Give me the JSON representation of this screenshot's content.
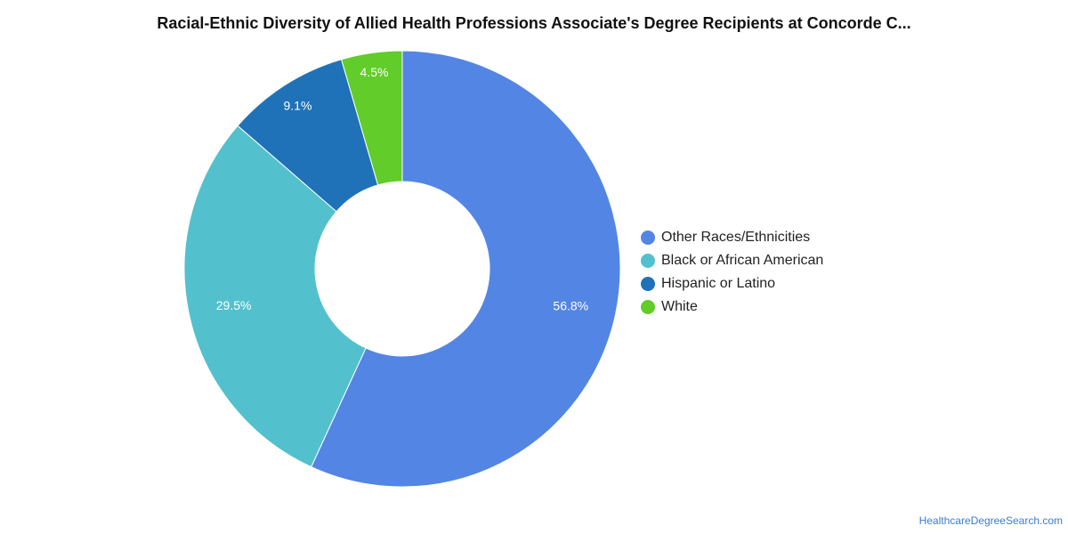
{
  "chart_data": {
    "type": "pie",
    "title": "Racial-Ethnic Diversity of Allied Health Professions Associate's Degree Recipients at Concorde C...",
    "categories": [
      "Other Races/Ethnicities",
      "Black or African American",
      "Hispanic or Latino",
      "White"
    ],
    "values": [
      56.8,
      29.5,
      9.1,
      4.5
    ],
    "labels": [
      "56.8%",
      "29.5%",
      "9.1%",
      "4.5%"
    ],
    "colors": [
      "#5385e4",
      "#52c1cd",
      "#1f72b8",
      "#61cc2a"
    ],
    "donut": true,
    "legend_position": "right"
  },
  "source_label": "HealthcareDegreeSearch.com"
}
